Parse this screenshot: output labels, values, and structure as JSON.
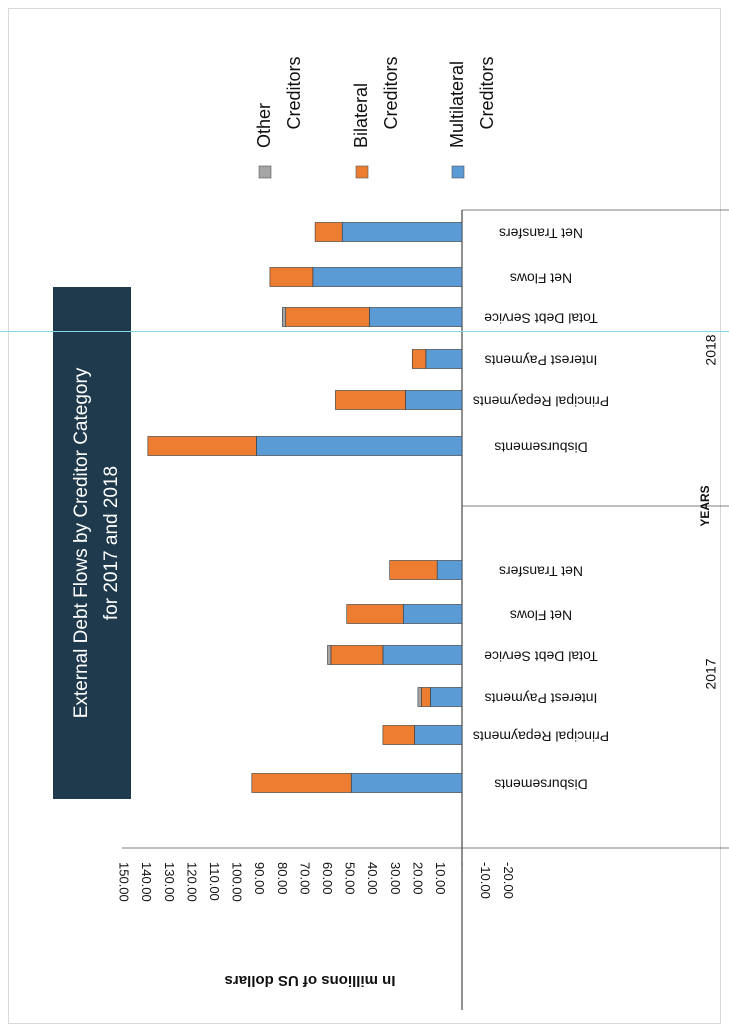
{
  "chart_data": {
    "type": "bar",
    "stacked": true,
    "orientation": "horizontal",
    "title": "External Debt Flows by Creditor Category for 2017 and 2018",
    "title_lines": [
      "External Debt Flows by Creditor Category",
      "for 2017 and 2018"
    ],
    "xlabel": "YEARS",
    "ylabel": "In millions of US dollars",
    "value_range": [
      -20,
      150
    ],
    "ticks": [
      {
        "value": 150,
        "label": "150.00"
      },
      {
        "value": 140,
        "label": "140.00"
      },
      {
        "value": 130,
        "label": "130.00"
      },
      {
        "value": 120,
        "label": "120.00"
      },
      {
        "value": 110,
        "label": "110.00"
      },
      {
        "value": 100,
        "label": "100.00"
      },
      {
        "value": 90,
        "label": "90.00"
      },
      {
        "value": 80,
        "label": "80.00"
      },
      {
        "value": 70,
        "label": "70.00"
      },
      {
        "value": 60,
        "label": "60.00"
      },
      {
        "value": 50,
        "label": "50.00"
      },
      {
        "value": 40,
        "label": "40.00"
      },
      {
        "value": 30,
        "label": "30.00"
      },
      {
        "value": 20,
        "label": "20.00"
      },
      {
        "value": 10,
        "label": "10.00"
      },
      {
        "value": 0,
        "label": "-"
      },
      {
        "value": -10,
        "label": "-10.00"
      },
      {
        "value": -20,
        "label": "-20.00"
      }
    ],
    "groups": [
      {
        "year": "2017",
        "categories": [
          "Disbursements",
          "Principal Repayments",
          "Interest Payments",
          "Total Debt Service",
          "Net Flows",
          "Net Transfers"
        ],
        "series": [
          {
            "name": "Multilateral Creditors",
            "values": [
              49,
              21,
              14,
              35,
              26,
              11
            ]
          },
          {
            "name": "Bilateral Creditors",
            "values": [
              44,
              14,
              4,
              23,
              25,
              21
            ]
          },
          {
            "name": "Other Creditors",
            "values": [
              0,
              0,
              1.5,
              1.5,
              0,
              0
            ]
          }
        ]
      },
      {
        "year": "2018",
        "categories": [
          "Disbursements",
          "Principal Repayments",
          "Interest Payments",
          "Total Debt Service",
          "Net Flows",
          "Net Transfers"
        ],
        "series": [
          {
            "name": "Multilateral Creditors",
            "values": [
              91,
              25,
              16,
              41,
              66,
              53
            ]
          },
          {
            "name": "Bilateral Creditors",
            "values": [
              48,
              31,
              6,
              37,
              19,
              12
            ]
          },
          {
            "name": "Other Creditors",
            "values": [
              0,
              0,
              0,
              1.5,
              0,
              0
            ]
          }
        ]
      }
    ],
    "legend": {
      "placement": "right",
      "entries": [
        {
          "name": "Other Creditors",
          "lines": [
            "Other",
            "Creditors"
          ],
          "color": "#a5a5a5"
        },
        {
          "name": "Bilateral Creditors",
          "lines": [
            "Bilateral",
            "Creditors"
          ],
          "color": "#ed7d31"
        },
        {
          "name": "Multilateral Creditors",
          "lines": [
            "Multilateral",
            "Creditors"
          ],
          "color": "#5b9bd5"
        }
      ]
    },
    "colors": {
      "Multilateral Creditors": "#5b9bd5",
      "Bilateral Creditors": "#ed7d31",
      "Other Creditors": "#a5a5a5",
      "title_box": "#1f3a4d"
    }
  }
}
